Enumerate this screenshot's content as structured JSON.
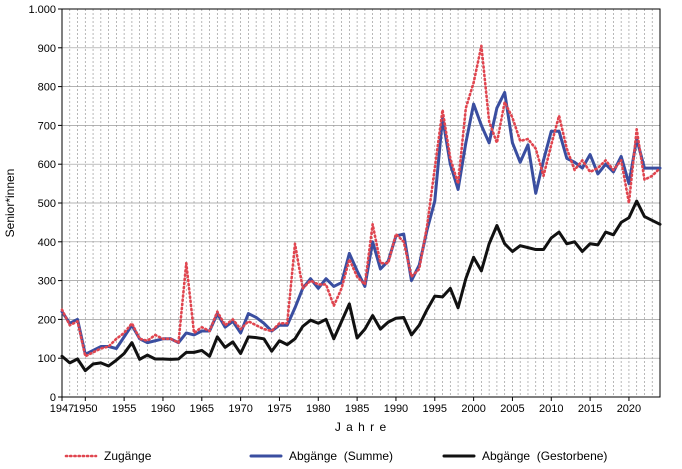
{
  "chart_data": {
    "type": "line",
    "title": "",
    "xlabel": "J a h r e",
    "ylabel": "Senior*innen",
    "xlim": [
      1947,
      2024
    ],
    "ylim": [
      0,
      1000
    ],
    "x_ticks": [
      1947,
      1950,
      1955,
      1960,
      1965,
      1970,
      1975,
      1980,
      1985,
      1990,
      1995,
      2000,
      2005,
      2010,
      2015,
      2020
    ],
    "y_tick_labels": [
      "0",
      "100",
      "200",
      "300",
      "400",
      "500",
      "600",
      "700",
      "800",
      "900",
      "1.000"
    ],
    "y_ticks": [
      0,
      100,
      200,
      300,
      400,
      500,
      600,
      700,
      800,
      900,
      1000
    ],
    "grid": "vertical dashed per year, horizontal at each y tick",
    "legend_position": "bottom",
    "x": [
      1947,
      1948,
      1949,
      1950,
      1951,
      1952,
      1953,
      1954,
      1955,
      1956,
      1957,
      1958,
      1959,
      1960,
      1961,
      1962,
      1963,
      1964,
      1965,
      1966,
      1967,
      1968,
      1969,
      1970,
      1971,
      1972,
      1973,
      1974,
      1975,
      1976,
      1977,
      1978,
      1979,
      1980,
      1981,
      1982,
      1983,
      1984,
      1985,
      1986,
      1987,
      1988,
      1989,
      1990,
      1991,
      1992,
      1993,
      1994,
      1995,
      1996,
      1997,
      1998,
      1999,
      2000,
      2001,
      2002,
      2003,
      2004,
      2005,
      2006,
      2007,
      2008,
      2009,
      2010,
      2011,
      2012,
      2013,
      2014,
      2015,
      2016,
      2017,
      2018,
      2019,
      2020,
      2021,
      2022,
      2023,
      2024
    ],
    "series": [
      {
        "name": "Zugänge",
        "color": "#e0454f",
        "style": "dotted",
        "values": [
          225,
          185,
          195,
          105,
          115,
          125,
          130,
          150,
          165,
          190,
          150,
          145,
          160,
          150,
          150,
          140,
          345,
          165,
          180,
          170,
          220,
          185,
          200,
          175,
          195,
          185,
          175,
          170,
          190,
          190,
          395,
          280,
          300,
          290,
          290,
          235,
          280,
          355,
          310,
          290,
          445,
          345,
          345,
          420,
          400,
          310,
          330,
          440,
          590,
          740,
          615,
          550,
          745,
          810,
          905,
          710,
          655,
          760,
          720,
          660,
          665,
          640,
          570,
          650,
          725,
          640,
          585,
          610,
          580,
          590,
          610,
          585,
          610,
          500,
          690,
          560,
          570,
          590
        ]
      },
      {
        "name": "Abgänge  (Summe)",
        "color": "#3a4ea0",
        "style": "solid",
        "values": [
          220,
          190,
          200,
          110,
          120,
          130,
          130,
          125,
          155,
          185,
          150,
          140,
          145,
          150,
          150,
          140,
          165,
          160,
          170,
          170,
          215,
          180,
          195,
          165,
          215,
          205,
          190,
          170,
          185,
          185,
          230,
          280,
          305,
          280,
          305,
          285,
          295,
          370,
          325,
          285,
          400,
          330,
          350,
          415,
          420,
          300,
          340,
          430,
          505,
          720,
          600,
          535,
          655,
          755,
          700,
          655,
          745,
          785,
          655,
          605,
          650,
          525,
          610,
          685,
          685,
          615,
          605,
          590,
          625,
          575,
          600,
          580,
          620,
          550,
          665,
          590,
          590,
          590
        ]
      },
      {
        "name": "Abgänge  (Gestorbene)",
        "color": "#111111",
        "style": "solid",
        "values": [
          105,
          88,
          98,
          68,
          85,
          88,
          80,
          95,
          112,
          140,
          97,
          108,
          98,
          98,
          97,
          98,
          115,
          115,
          120,
          105,
          155,
          128,
          142,
          112,
          155,
          153,
          150,
          118,
          145,
          135,
          150,
          182,
          198,
          190,
          200,
          150,
          195,
          240,
          152,
          175,
          210,
          175,
          193,
          203,
          205,
          160,
          185,
          225,
          260,
          258,
          280,
          230,
          305,
          360,
          325,
          395,
          442,
          395,
          375,
          390,
          385,
          380,
          380,
          410,
          425,
          395,
          400,
          375,
          395,
          392,
          425,
          418,
          450,
          462,
          505,
          465,
          455,
          445
        ]
      }
    ]
  }
}
